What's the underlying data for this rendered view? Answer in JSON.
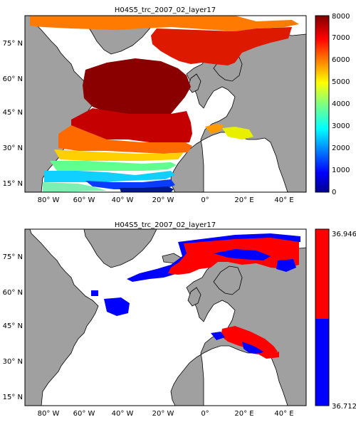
{
  "chart_data": [
    {
      "type": "heatmap",
      "title": "H04S5_trc_2007_02_layer17",
      "x_ticks": [
        "80° W",
        "60° W",
        "40° W",
        "20° W",
        "0°",
        "20° E",
        "40° E"
      ],
      "y_ticks": [
        "75° N",
        "60° N",
        "45° N",
        "30° N",
        "15° N"
      ],
      "x_range": [
        -90,
        30
      ],
      "y_range": [
        10,
        85
      ],
      "colormap": "jet",
      "colorbar": {
        "min": 0,
        "max": 8000,
        "ticks": [
          "0",
          "1000",
          "2000",
          "3000",
          "4000",
          "5000",
          "6000",
          "7000",
          "8000"
        ]
      },
      "grid": false
    },
    {
      "type": "heatmap",
      "title": "H04S5_trc_2007_02_layer17",
      "x_ticks": [
        "80° W",
        "60° W",
        "40° W",
        "20° W",
        "0°",
        "20° E",
        "40° E"
      ],
      "y_ticks": [
        "75° N",
        "60° N",
        "45° N",
        "30° N",
        "15° N"
      ],
      "x_range": [
        -90,
        30
      ],
      "y_range": [
        10,
        85
      ],
      "colormap": "two-color",
      "colorbar": {
        "min": 36.712,
        "max": 36.946,
        "ticks": [
          "36.712",
          "36.946"
        ],
        "colors": [
          "#0000ff",
          "#ff0000"
        ]
      },
      "grid": false
    }
  ]
}
